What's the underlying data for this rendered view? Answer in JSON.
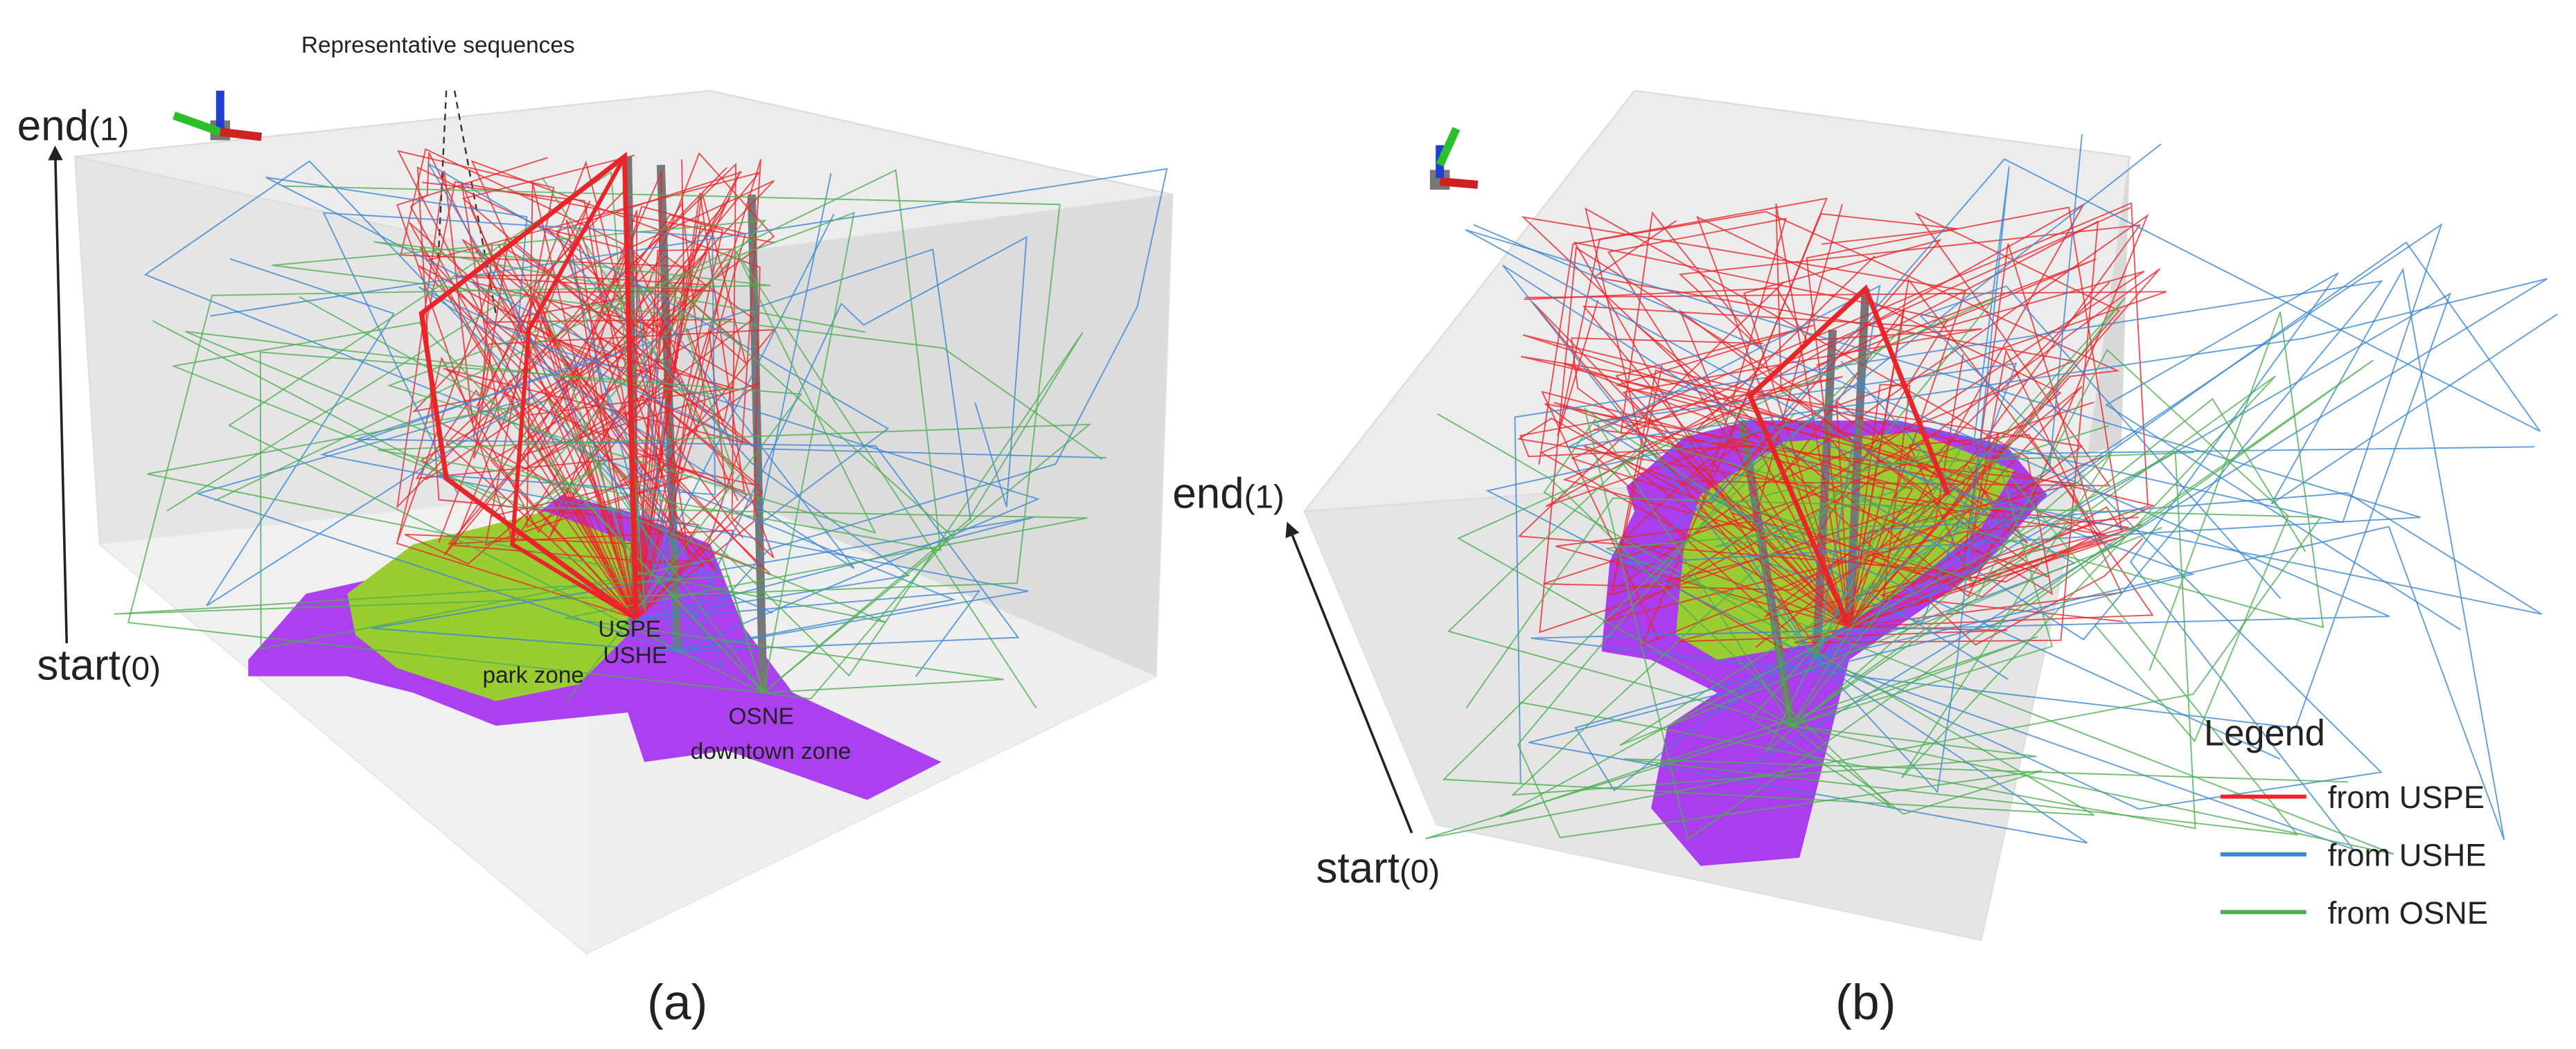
{
  "panels": [
    {
      "label": "(a)",
      "annotation": "Representative sequences",
      "axis": {
        "end": "end",
        "end_value": "(1)",
        "start": "start",
        "start_value": "(0)"
      },
      "markers": [
        "USPE",
        "USHE",
        "OSNE"
      ],
      "zones": [
        "park zone",
        "downtown zone"
      ]
    },
    {
      "label": "(b)",
      "axis": {
        "end": "end",
        "end_value": "(1)",
        "start": "start",
        "start_value": "(0)"
      }
    }
  ],
  "legend": {
    "title": "Legend",
    "items": [
      {
        "label": "from USPE",
        "color": "#e8262a"
      },
      {
        "label": "from USHE",
        "color": "#3a86d4"
      },
      {
        "label": "from OSNE",
        "color": "#4caf50"
      }
    ]
  }
}
